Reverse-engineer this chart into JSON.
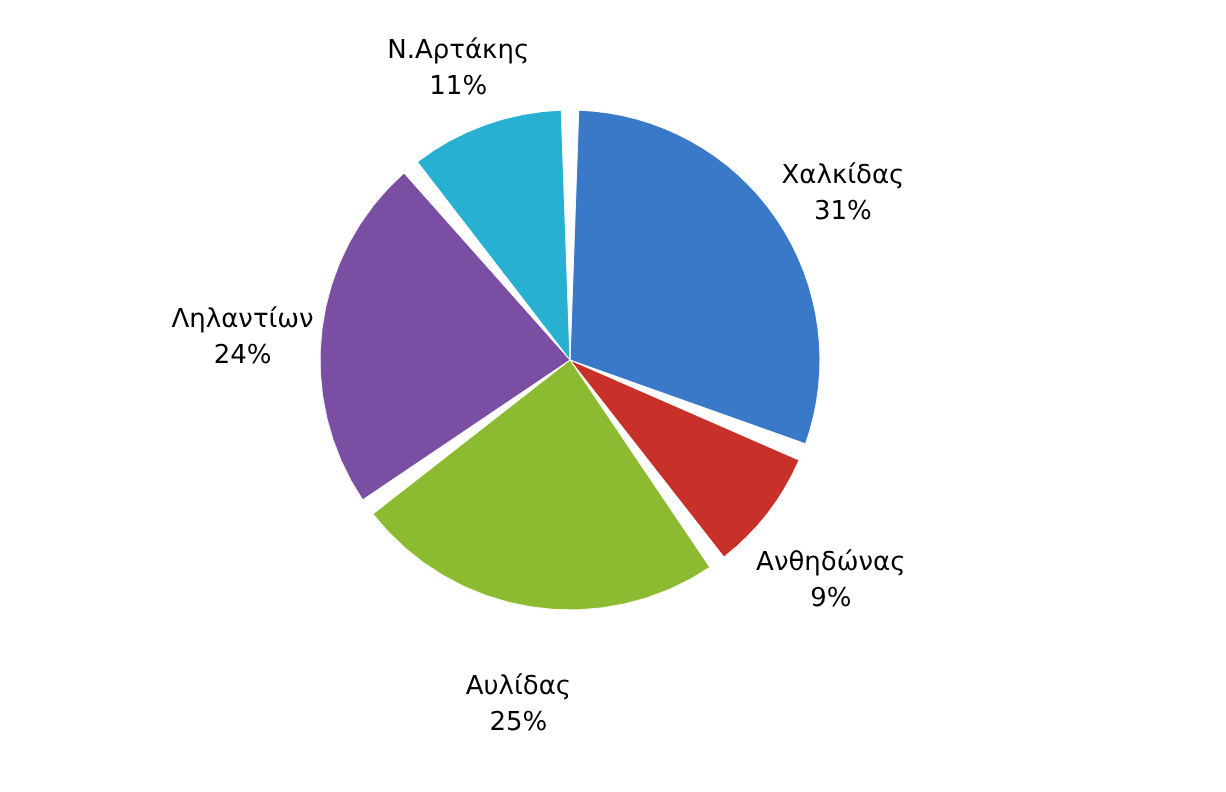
{
  "chart_data": {
    "type": "pie",
    "categories": [
      "Χαλκίδας",
      "Ανθηδώνας",
      "Αυλίδας",
      "Ληλαντίων",
      "Ν.Αρτάκης"
    ],
    "values": [
      31,
      9,
      25,
      24,
      11
    ],
    "value_labels": [
      "31%",
      "9%",
      "25%",
      "24%",
      "11%"
    ],
    "colors": [
      "#3a78c8",
      "#c8302a",
      "#8cba30",
      "#7a4ea2",
      "#28b0d2"
    ],
    "legend": false
  }
}
